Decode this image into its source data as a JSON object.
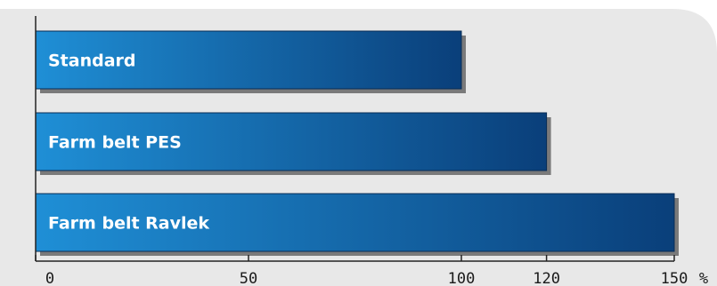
{
  "chart_data": {
    "type": "bar",
    "orientation": "horizontal",
    "categories": [
      "Standard",
      "Farm belt PES",
      "Farm belt Ravlek"
    ],
    "values": [
      100,
      120,
      150
    ],
    "xlim": [
      0,
      150
    ],
    "xticks": [
      0,
      50,
      100,
      120,
      150
    ],
    "xtick_labels": [
      "0",
      "50",
      "100",
      "120",
      "150"
    ],
    "unit_label": "%",
    "grid": false,
    "colors": {
      "panel": "#e8e8e8",
      "bar_light": "#1f8fd6",
      "bar_dark": "#0a3f7a",
      "bar_shadow": "#555555",
      "axis": "#222222"
    }
  }
}
